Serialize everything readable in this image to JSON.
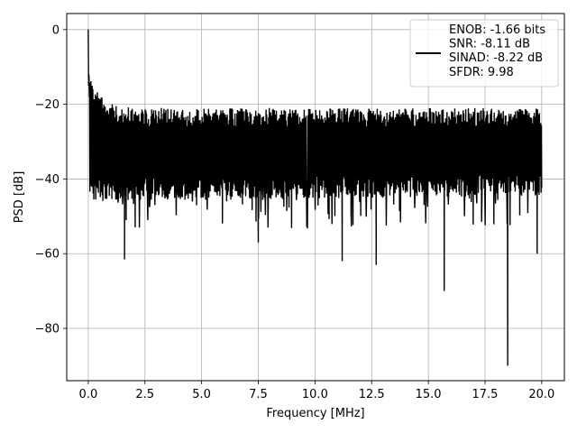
{
  "chart_data": {
    "type": "line",
    "title": "",
    "xlabel": "Frequency [MHz]",
    "ylabel": "PSD [dB]",
    "xlim": [
      -0.95,
      21.0
    ],
    "ylim": [
      -94,
      4.3
    ],
    "xticks": [
      0,
      2.5,
      5,
      7.5,
      10,
      12.5,
      15,
      17.5,
      20
    ],
    "xtick_labels": [
      "0.0",
      "2.5",
      "5.0",
      "7.5",
      "10.0",
      "12.5",
      "15.0",
      "17.5",
      "20.0"
    ],
    "yticks": [
      0,
      -20,
      -40,
      -60,
      -80
    ],
    "ytick_labels": [
      "0",
      "−20",
      "−40",
      "−60",
      "−80"
    ],
    "grid": true,
    "legend_position": "top-right",
    "series": [
      {
        "name": "ENOB: -1.66 bits\nSNR: -8.11 dB\nSINAD: -8.22 dB\nSFDR: 9.98",
        "color": "#000000",
        "x_range": [
          0,
          20
        ],
        "noise_floor_top": -26,
        "noise_floor_bottom": -40,
        "peak": {
          "x": 0.0,
          "y": 0.0
        },
        "notable_dips": [
          {
            "x": 1.6,
            "y": -61.5
          },
          {
            "x": 7.5,
            "y": -57
          },
          {
            "x": 11.2,
            "y": -62
          },
          {
            "x": 12.7,
            "y": -63
          },
          {
            "x": 15.7,
            "y": -70
          },
          {
            "x": 18.5,
            "y": -90
          },
          {
            "x": 19.8,
            "y": -60
          }
        ]
      }
    ]
  }
}
